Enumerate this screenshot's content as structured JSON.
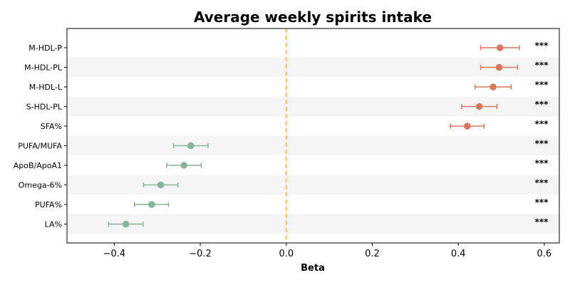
{
  "chart_data": {
    "type": "scatter",
    "title": "Average weekly spirits intake",
    "xlabel": "Beta",
    "ylabel": "",
    "xlim": [
      -0.51,
      0.635
    ],
    "xticks": [
      -0.4,
      -0.2,
      0.0,
      0.2,
      0.4,
      0.6
    ],
    "xtick_labels": [
      "−0.4",
      "−0.2",
      "0.0",
      "0.2",
      "0.4",
      "0.6"
    ],
    "reference_line": 0.0,
    "reference_line_color": "#f5c27a",
    "positive_color": "#d9775e",
    "negative_color": "#86b49a",
    "stripe_color": "#f5f5f5",
    "grid": false,
    "points": [
      {
        "label": "M-HDL-P",
        "beta": 0.497,
        "ci_low": 0.452,
        "ci_high": 0.542,
        "sig": "***"
      },
      {
        "label": "M-HDL-PL",
        "beta": 0.495,
        "ci_low": 0.452,
        "ci_high": 0.538,
        "sig": "***"
      },
      {
        "label": "M-HDL-L",
        "beta": 0.481,
        "ci_low": 0.439,
        "ci_high": 0.523,
        "sig": "***"
      },
      {
        "label": "S-HDL-PL",
        "beta": 0.449,
        "ci_low": 0.408,
        "ci_high": 0.49,
        "sig": "***"
      },
      {
        "label": "SFA%",
        "beta": 0.421,
        "ci_low": 0.382,
        "ci_high": 0.46,
        "sig": "***"
      },
      {
        "label": "PUFA/MUFA",
        "beta": -0.222,
        "ci_low": -0.262,
        "ci_high": -0.182,
        "sig": "***"
      },
      {
        "label": "ApoB/ApoA1",
        "beta": -0.238,
        "ci_low": -0.278,
        "ci_high": -0.198,
        "sig": "***"
      },
      {
        "label": "Omega-6%",
        "beta": -0.292,
        "ci_low": -0.332,
        "ci_high": -0.252,
        "sig": "***"
      },
      {
        "label": "PUFA%",
        "beta": -0.313,
        "ci_low": -0.353,
        "ci_high": -0.274,
        "sig": "***"
      },
      {
        "label": "LA%",
        "beta": -0.373,
        "ci_low": -0.413,
        "ci_high": -0.333,
        "sig": "***"
      }
    ]
  }
}
